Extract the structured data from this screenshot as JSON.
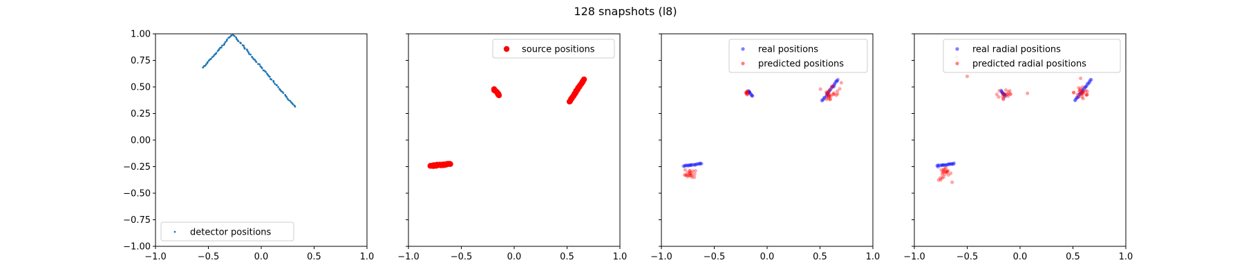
{
  "figure": {
    "suptitle": "128 snapshots (l8)"
  },
  "chart_data": [
    {
      "type": "scatter",
      "title": "",
      "xlabel": "",
      "ylabel": "",
      "xlim": [
        -1.0,
        1.0
      ],
      "ylim": [
        -1.0,
        1.0
      ],
      "xticks": [
        "−1.0",
        "−0.5",
        "0.0",
        "0.5",
        "1.0"
      ],
      "yticks": [
        "1.00",
        "0.75",
        "0.50",
        "0.25",
        "0.00",
        "−0.25",
        "−0.50",
        "−0.75",
        "−1.00"
      ],
      "xtick_values": [
        -1.0,
        -0.5,
        0.0,
        0.5,
        1.0
      ],
      "ytick_values": [
        1.0,
        0.75,
        0.5,
        0.25,
        0.0,
        -0.25,
        -0.5,
        -0.75,
        -1.0
      ],
      "grid": false,
      "legend_position": "lower-left",
      "series": [
        {
          "name": "detector positions",
          "color": "#1f77b4",
          "marker": "point",
          "segments": [
            {
              "x": [
                -0.55,
                -0.27
              ],
              "y": [
                0.68,
                1.0
              ],
              "n": 30
            },
            {
              "x": [
                -0.27,
                0.32
              ],
              "y": [
                1.0,
                0.31
              ],
              "n": 60
            }
          ]
        }
      ]
    },
    {
      "type": "scatter",
      "title": "",
      "xlabel": "",
      "ylabel": "",
      "xlim": [
        -1.0,
        1.0
      ],
      "ylim": [
        -1.0,
        1.0
      ],
      "xticks": [
        "−1.0",
        "−0.5",
        "0.0",
        "0.5",
        "1.0"
      ],
      "yticks": [],
      "xtick_values": [
        -1.0,
        -0.5,
        0.0,
        0.5,
        1.0
      ],
      "ytick_values": [
        1.0,
        0.75,
        0.5,
        0.25,
        0.0,
        -0.25,
        -0.5,
        -0.75,
        -1.0
      ],
      "grid": false,
      "legend_position": "top-right",
      "series": [
        {
          "name": "source positions",
          "color": "#ff0000",
          "marker": "large",
          "segments": [
            {
              "x": [
                -0.79,
                -0.61
              ],
              "y": [
                -0.245,
                -0.225
              ],
              "n": 24
            },
            {
              "x": [
                -0.19,
                -0.14
              ],
              "y": [
                0.48,
                0.42
              ],
              "n": 10
            },
            {
              "x": [
                0.52,
                0.66
              ],
              "y": [
                0.36,
                0.57
              ],
              "n": 26
            }
          ]
        }
      ]
    },
    {
      "type": "scatter",
      "title": "",
      "xlabel": "",
      "ylabel": "",
      "xlim": [
        -1.0,
        1.0
      ],
      "ylim": [
        -1.0,
        1.0
      ],
      "xticks": [
        "−1.0",
        "−0.5",
        "0.0",
        "0.5",
        "1.0"
      ],
      "yticks": [],
      "xtick_values": [
        -1.0,
        -0.5,
        0.0,
        0.5,
        1.0
      ],
      "ytick_values": [
        1.0,
        0.75,
        0.5,
        0.25,
        0.0,
        -0.25,
        -0.5,
        -0.75,
        -1.0
      ],
      "grid": false,
      "legend_position": "top-right",
      "series": [
        {
          "name": "real positions",
          "color": "#0000ff",
          "marker": "small-alpha",
          "segments": [
            {
              "x": [
                -0.79,
                -0.62
              ],
              "y": [
                -0.245,
                -0.22
              ],
              "n": 20
            },
            {
              "x": [
                -0.18,
                -0.14
              ],
              "y": [
                0.465,
                0.415
              ],
              "n": 10
            },
            {
              "x": [
                0.52,
                0.67
              ],
              "y": [
                0.37,
                0.57
              ],
              "n": 24
            }
          ]
        },
        {
          "name": "predicted positions",
          "color": "#ff0000",
          "marker": "small-alpha",
          "clusters": [
            {
              "cx": -0.73,
              "cy": -0.31,
              "spread": 0.025,
              "n": 18
            },
            {
              "cx": -0.78,
              "cy": -0.34,
              "spread": 0.01,
              "n": 2
            },
            {
              "cx": -0.19,
              "cy": 0.44,
              "spread": 0.012,
              "n": 10
            },
            {
              "cx": 0.62,
              "cy": 0.47,
              "spread": 0.04,
              "n": 20
            },
            {
              "cx": 0.59,
              "cy": 0.39,
              "spread": 0.015,
              "n": 6
            }
          ]
        }
      ]
    },
    {
      "type": "scatter",
      "title": "",
      "xlabel": "",
      "ylabel": "",
      "xlim": [
        -1.0,
        1.0
      ],
      "ylim": [
        -1.0,
        1.0
      ],
      "xticks": [
        "−1.0",
        "−0.5",
        "0.0",
        "0.5",
        "1.0"
      ],
      "yticks": [],
      "xtick_values": [
        -1.0,
        -0.5,
        0.0,
        0.5,
        1.0
      ],
      "ytick_values": [
        1.0,
        0.75,
        0.5,
        0.25,
        0.0,
        -0.25,
        -0.5,
        -0.75,
        -1.0
      ],
      "grid": false,
      "legend_position": "top-right",
      "series": [
        {
          "name": "real radial positions",
          "color": "#0000ff",
          "marker": "small-alpha",
          "segments": [
            {
              "x": [
                -0.79,
                -0.62
              ],
              "y": [
                -0.245,
                -0.22
              ],
              "n": 20
            },
            {
              "x": [
                -0.18,
                -0.14
              ],
              "y": [
                0.465,
                0.415
              ],
              "n": 10
            },
            {
              "x": [
                0.52,
                0.67
              ],
              "y": [
                0.37,
                0.57
              ],
              "n": 24
            }
          ]
        },
        {
          "name": "predicted radial positions",
          "color": "#ff0000",
          "marker": "small-alpha",
          "clusters": [
            {
              "cx": -0.71,
              "cy": -0.32,
              "spread": 0.03,
              "n": 22
            },
            {
              "cx": -0.14,
              "cy": 0.43,
              "spread": 0.04,
              "n": 16
            },
            {
              "cx": 0.59,
              "cy": 0.45,
              "spread": 0.04,
              "n": 24
            }
          ],
          "points": [
            {
              "x": -0.6,
              "y": 0.78
            },
            {
              "x": -0.5,
              "y": 0.6
            },
            {
              "x": -0.22,
              "y": 0.43
            },
            {
              "x": 0.07,
              "y": 0.44
            }
          ]
        }
      ]
    }
  ]
}
